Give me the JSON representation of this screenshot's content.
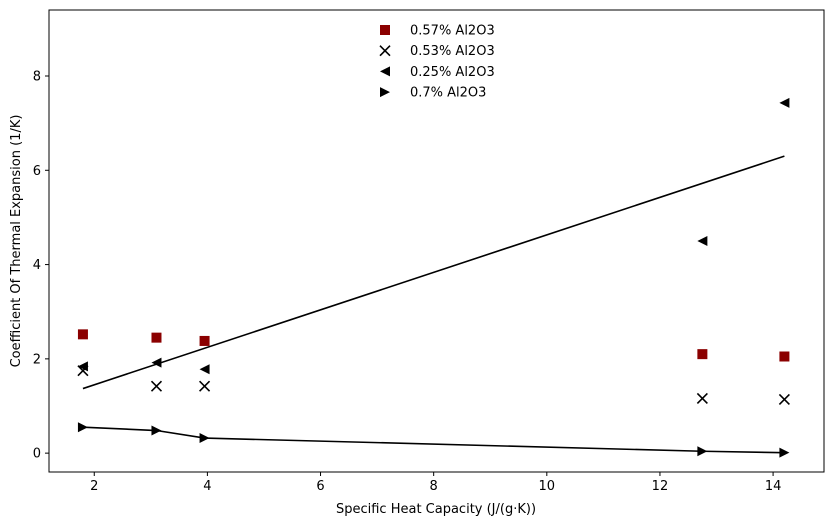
{
  "chart_data": {
    "type": "scatter",
    "xlabel": "Specific Heat Capacity (J/(g·K))",
    "ylabel": "Coefficient Of Thermal Expansion (1/K)",
    "xlim": [
      1.2,
      14.9
    ],
    "ylim": [
      -0.4,
      9.4
    ],
    "xticks": [
      2,
      4,
      6,
      8,
      10,
      12,
      14
    ],
    "yticks": [
      0,
      2,
      4,
      6,
      8
    ],
    "grid": false,
    "legend_position": "top-center",
    "series": [
      {
        "name": "0.57% Al2O3",
        "marker": "square",
        "color": "#8b0000",
        "x": [
          1.8,
          3.1,
          3.95,
          12.75,
          14.2
        ],
        "y": [
          2.52,
          2.45,
          2.38,
          2.1,
          2.05
        ]
      },
      {
        "name": "0.53% Al2O3",
        "marker": "x",
        "color": "#000000",
        "x": [
          1.8,
          3.1,
          3.95,
          12.75,
          14.2
        ],
        "y": [
          1.75,
          1.42,
          1.42,
          1.16,
          1.14
        ]
      },
      {
        "name": "0.25% Al2O3",
        "marker": "triangle-left",
        "color": "#000000",
        "x": [
          1.8,
          3.1,
          3.95,
          12.75,
          14.2
        ],
        "y": [
          1.84,
          1.92,
          1.78,
          4.5,
          7.43
        ]
      },
      {
        "name": "0.7% Al2O3",
        "marker": "triangle-right",
        "color": "#000000",
        "x": [
          1.8,
          3.1,
          3.95,
          12.75,
          14.2
        ],
        "y": [
          0.55,
          0.48,
          0.32,
          0.04,
          0.01
        ],
        "connected": true
      }
    ],
    "fit_line": {
      "x": [
        1.8,
        14.2
      ],
      "y": [
        1.37,
        6.3
      ],
      "color": "#000000"
    }
  }
}
